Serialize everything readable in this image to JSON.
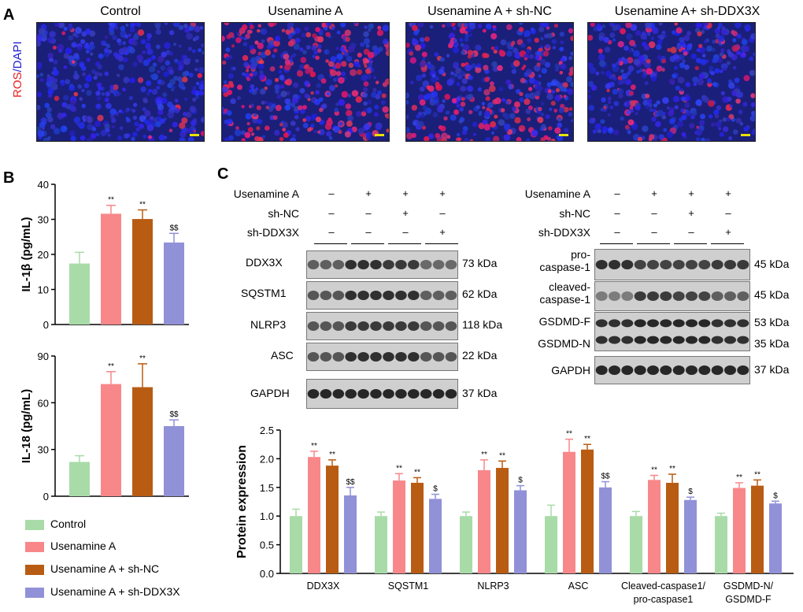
{
  "panel_labels": {
    "a": "A",
    "b": "B",
    "c": "C"
  },
  "panel_a": {
    "y_label_red": "ROS",
    "y_label_sep": "/",
    "y_label_blue": "DAPI",
    "titles": [
      "Control",
      "Usenamine A",
      "Usenamine A + sh-NC",
      "Usenamine A+ sh-DDX3X"
    ]
  },
  "colors": {
    "control": "#a8dba8",
    "usenamine": "#f8878a",
    "shnc": "#b85c13",
    "shddx3x": "#9191d8"
  },
  "legend": [
    "Control",
    "Usenamine A",
    "Usenamine A + sh-NC",
    "Usenamine A + sh-DDX3X"
  ],
  "blot_left": {
    "conditions": [
      {
        "label": "Usenamine A",
        "signs": [
          "–",
          "+",
          "+",
          "+"
        ]
      },
      {
        "label": "sh-NC",
        "signs": [
          "–",
          "–",
          "+",
          "–"
        ]
      },
      {
        "label": "sh-DDX3X",
        "signs": [
          "–",
          "–",
          "–",
          "+"
        ]
      }
    ],
    "rows": [
      {
        "gene": "DDX3X",
        "kda": "73 kDa"
      },
      {
        "gene": "SQSTM1",
        "kda": "62 kDa"
      },
      {
        "gene": "NLRP3",
        "kda": "118 kDa"
      },
      {
        "gene": "ASC",
        "kda": "22 kDa"
      },
      {
        "gene": "GAPDH",
        "kda": "37 kDa"
      }
    ]
  },
  "blot_right": {
    "conditions": [
      {
        "label": "Usenamine A",
        "signs": [
          "–",
          "+",
          "+",
          "+"
        ]
      },
      {
        "label": "sh-NC",
        "signs": [
          "–",
          "–",
          "+",
          "–"
        ]
      },
      {
        "label": "sh-DDX3X",
        "signs": [
          "–",
          "–",
          "–",
          "+"
        ]
      }
    ],
    "rows": [
      {
        "gene": "pro-\ncaspase-1",
        "kda": "45 kDa"
      },
      {
        "gene": "cleaved-\ncaspase-1",
        "kda": "45 kDa"
      },
      {
        "gene": "GSDMD-F",
        "kda": "53 kDa"
      },
      {
        "gene": "GSDMD-N",
        "kda": "35 kDa"
      },
      {
        "gene": "GAPDH",
        "kda": "37 kDa"
      }
    ]
  },
  "chart_data": [
    {
      "type": "bar",
      "ylabel": "IL-1β (pg/mL)",
      "ylim": [
        0,
        40
      ],
      "yticks": [
        0,
        10,
        20,
        30,
        40
      ],
      "categories": [
        "Control",
        "Usenamine A",
        "Usenamine A + sh-NC",
        "Usenamine A + sh-DDX3X"
      ],
      "values": [
        17.4,
        31.6,
        30.1,
        23.4
      ],
      "errors": [
        3.2,
        2.4,
        2.6,
        2.6
      ],
      "annotations": [
        "",
        "**",
        "**",
        "$$"
      ]
    },
    {
      "type": "bar",
      "ylabel": "IL-18 (pg/mL)",
      "ylim": [
        0,
        90
      ],
      "yticks": [
        0,
        30,
        60,
        90
      ],
      "categories": [
        "Control",
        "Usenamine A",
        "Usenamine A + sh-NC",
        "Usenamine A + sh-DDX3X"
      ],
      "values": [
        22,
        72,
        70,
        45
      ],
      "errors": [
        4,
        8,
        15,
        4
      ],
      "annotations": [
        "",
        "**",
        "**",
        "$$"
      ]
    },
    {
      "type": "bar",
      "ylabel": "Protein expression",
      "ylim": [
        0,
        2.5
      ],
      "yticks": [
        "0.0",
        "0.5",
        "1.0",
        "1.5",
        "2.0",
        "2.5"
      ],
      "categories": [
        "DDX3X",
        "SQSTM1",
        "NLRP3",
        "ASC",
        "Cleaved-caspase1/\npro-caspase1",
        "GSDMD-N/\nGSDMD-F"
      ],
      "series": [
        {
          "name": "Control",
          "values": [
            1.0,
            1.0,
            1.0,
            1.0,
            1.0,
            1.0
          ],
          "errors": [
            0.12,
            0.07,
            0.07,
            0.19,
            0.08,
            0.05
          ],
          "annotations": [
            "",
            "",
            "",
            "",
            "",
            ""
          ]
        },
        {
          "name": "Usenamine A",
          "values": [
            2.03,
            1.62,
            1.8,
            2.12,
            1.63,
            1.49
          ],
          "errors": [
            0.1,
            0.12,
            0.18,
            0.22,
            0.08,
            0.09
          ],
          "annotations": [
            "**",
            "**",
            "**",
            "**",
            "**",
            "**"
          ]
        },
        {
          "name": "Usenamine A + sh-NC",
          "values": [
            1.88,
            1.58,
            1.84,
            2.16,
            1.58,
            1.53
          ],
          "errors": [
            0.1,
            0.09,
            0.12,
            0.09,
            0.15,
            0.1
          ],
          "annotations": [
            "**",
            "**",
            "**",
            "**",
            "**",
            "**"
          ]
        },
        {
          "name": "Usenamine A + sh-DDX3X",
          "values": [
            1.36,
            1.3,
            1.45,
            1.5,
            1.28,
            1.22
          ],
          "errors": [
            0.14,
            0.08,
            0.08,
            0.1,
            0.05,
            0.04
          ],
          "annotations": [
            "$$",
            "$",
            "$",
            "$$",
            "$",
            "$"
          ]
        }
      ]
    }
  ]
}
